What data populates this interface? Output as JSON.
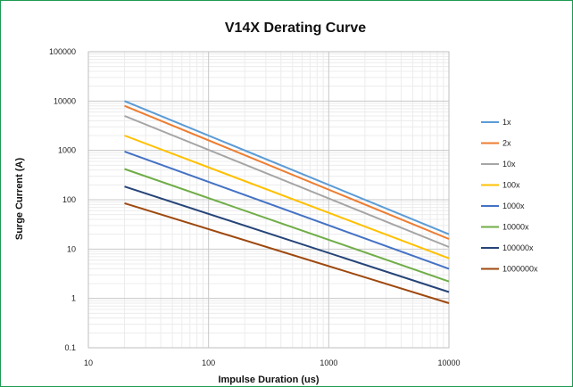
{
  "chart_data": {
    "type": "line",
    "title": "V14X Derating Curve",
    "xlabel": "Impulse Duration (us)",
    "ylabel": "Surge Current (A)",
    "x_scale": "log",
    "y_scale": "log",
    "xlim": [
      10,
      10000
    ],
    "ylim": [
      0.1,
      100000
    ],
    "x_ticks": [
      "10",
      "100",
      "1000",
      "10000"
    ],
    "y_ticks": [
      "0.1",
      "1",
      "10",
      "100",
      "1000",
      "10000",
      "100000"
    ],
    "grid": true,
    "legend_position": "right",
    "series": [
      {
        "name": "1x",
        "color": "#5b9bd5",
        "points": [
          [
            20,
            10000
          ],
          [
            10000,
            20
          ]
        ]
      },
      {
        "name": "2x",
        "color": "#ed7d31",
        "points": [
          [
            20,
            8000
          ],
          [
            10000,
            16
          ]
        ]
      },
      {
        "name": "10x",
        "color": "#a5a5a5",
        "points": [
          [
            20,
            5000
          ],
          [
            10000,
            11
          ]
        ]
      },
      {
        "name": "100x",
        "color": "#ffc000",
        "points": [
          [
            20,
            2000
          ],
          [
            10000,
            6.5
          ]
        ]
      },
      {
        "name": "1000x",
        "color": "#4472c4",
        "points": [
          [
            20,
            950
          ],
          [
            10000,
            4
          ]
        ]
      },
      {
        "name": "10000x",
        "color": "#70ad47",
        "points": [
          [
            20,
            420
          ],
          [
            10000,
            2.2
          ]
        ]
      },
      {
        "name": "100000x",
        "color": "#264478",
        "points": [
          [
            20,
            185
          ],
          [
            10000,
            1.35
          ]
        ]
      },
      {
        "name": "1000000x",
        "color": "#9e480e",
        "points": [
          [
            20,
            85
          ],
          [
            10000,
            0.8
          ]
        ]
      }
    ]
  }
}
